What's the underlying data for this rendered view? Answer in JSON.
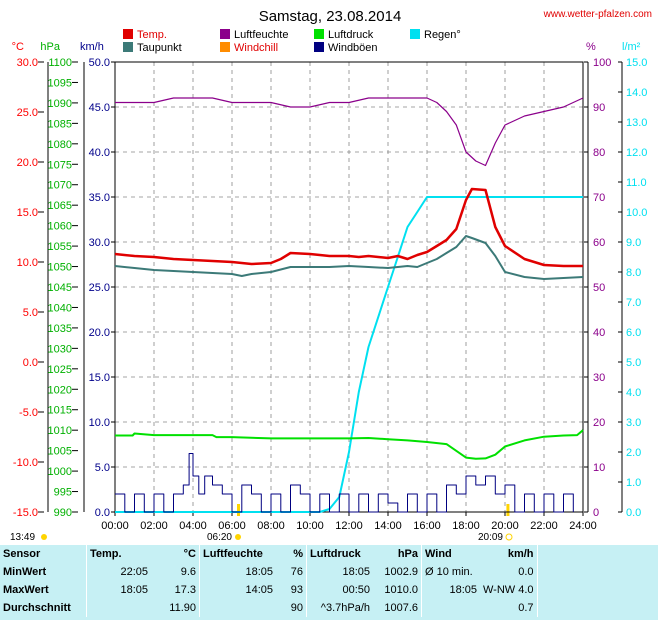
{
  "header": {
    "title": "Samstag, 23.08.2014",
    "site": "www.wetter-pfalzen.com"
  },
  "colors": {
    "temp": "#e00000",
    "dew": "#3c7a78",
    "humidity": "#8b008b",
    "windchill": "#ff8c00",
    "pressure": "#00e000",
    "windgust": "#000080",
    "rain": "#00e0f0",
    "left_km": "#00008b",
    "left_temp": "#ff0000",
    "left_hpa": "#00b000",
    "stats_bg": "#c6f0f4"
  },
  "chart_data": {
    "type": "line",
    "legend": [
      {
        "name": "Temp.",
        "key": "temp"
      },
      {
        "name": "Taupunkt",
        "key": "dew"
      },
      {
        "name": "Luftfeuchte",
        "key": "humidity"
      },
      {
        "name": "Windchill",
        "key": "windchill"
      },
      {
        "name": "Luftdruck",
        "key": "pressure"
      },
      {
        "name": "Windböen",
        "key": "windgust"
      },
      {
        "name": "Regen°",
        "key": "rain"
      }
    ],
    "axes": {
      "km_h": {
        "label": "km/h",
        "ticks": [
          "50.0",
          "45.0",
          "40.0",
          "35.0",
          "30.0",
          "25.0",
          "20.0",
          "15.0",
          "10.0",
          "5.0",
          "0.0"
        ],
        "range": [
          0,
          50
        ]
      },
      "temp_c": {
        "label": "°C",
        "ticks": [
          "30.0",
          "25.0",
          "20.0",
          "15.0",
          "10.0",
          "5.0",
          "0.0",
          "-5.0",
          "-10.0",
          "-15.0"
        ],
        "range": [
          -15,
          30
        ]
      },
      "pressure_hpa": {
        "label": "hPa",
        "ticks": [
          "1100",
          "1095",
          "1090",
          "1085",
          "1080",
          "1075",
          "1070",
          "1065",
          "1060",
          "1055",
          "1050",
          "1045",
          "1040",
          "1035",
          "1030",
          "1025",
          "1020",
          "1015",
          "1010",
          "1005",
          "1000",
          "995",
          "990"
        ],
        "range": [
          990,
          1100
        ]
      },
      "humidity_pct": {
        "label": "%",
        "ticks": [
          "100",
          "90",
          "80",
          "70",
          "60",
          "50",
          "40",
          "30",
          "20",
          "10",
          "0"
        ],
        "range": [
          0,
          100
        ]
      },
      "rain_l_m2": {
        "label": "l/m²",
        "ticks": [
          "15.0",
          "14.0",
          "13.0",
          "12.0",
          "11.0",
          "10.0",
          "9.0",
          "8.0",
          "7.0",
          "6.0",
          "5.0",
          "4.0",
          "3.0",
          "2.0",
          "1.0",
          "0.0"
        ],
        "range": [
          0,
          15
        ]
      }
    },
    "x_ticks": [
      "00:00",
      "02:00",
      "04:00",
      "06:00",
      "08:00",
      "10:00",
      "12:00",
      "14:00",
      "16:00",
      "18:00",
      "20:00",
      "22:00",
      "24:00"
    ],
    "x_range": [
      0,
      24
    ],
    "grid": true,
    "sun_labels": {
      "sunrise": "06:20",
      "sunset": "20:09",
      "daylight": "13:49"
    },
    "series": [
      {
        "name": "Temp.",
        "key": "temp",
        "axis": "temp_c",
        "x": [
          0,
          1,
          2,
          3,
          4,
          5,
          6,
          6.5,
          7,
          8,
          8.5,
          9,
          10,
          10.5,
          11,
          12,
          12.5,
          13,
          14,
          14.5,
          15,
          15.5,
          16,
          16.5,
          17,
          17.5,
          18,
          18.3,
          19,
          19.5,
          20,
          21,
          22,
          23,
          24
        ],
        "y": [
          10.8,
          10.6,
          10.5,
          10.3,
          10.2,
          10.1,
          10.0,
          9.9,
          9.8,
          9.9,
          10.3,
          10.9,
          10.8,
          10.7,
          10.6,
          10.6,
          10.5,
          10.6,
          10.4,
          10.6,
          10.3,
          10.7,
          11.0,
          11.6,
          12.2,
          13.3,
          16.2,
          17.3,
          17.2,
          13.5,
          11.6,
          10.3,
          9.7,
          9.6,
          9.6
        ]
      },
      {
        "name": "Taupunkt",
        "key": "dew",
        "axis": "temp_c",
        "x": [
          0,
          1,
          2,
          3,
          4,
          5,
          6,
          6.5,
          7,
          8,
          9,
          10,
          11,
          12,
          13,
          14,
          15,
          15.5,
          16,
          16.5,
          17,
          17.5,
          18,
          18.3,
          19,
          19.5,
          20,
          21,
          22,
          23,
          24
        ],
        "y": [
          9.6,
          9.4,
          9.2,
          9.1,
          9.0,
          8.9,
          8.8,
          8.6,
          8.8,
          9.0,
          9.5,
          9.5,
          9.5,
          9.6,
          9.5,
          9.4,
          9.6,
          9.5,
          9.9,
          10.3,
          10.9,
          11.5,
          12.6,
          12.4,
          11.9,
          10.6,
          9.0,
          8.5,
          8.3,
          8.4,
          8.5
        ]
      },
      {
        "name": "Luftfeuchte",
        "key": "humidity",
        "axis": "humidity_pct",
        "x": [
          0,
          1,
          2,
          3,
          4,
          5,
          6,
          7,
          8,
          9,
          10,
          11,
          12,
          13,
          14,
          15,
          16,
          16.5,
          17,
          17.5,
          18,
          18.5,
          19,
          19.5,
          20,
          21,
          22,
          23,
          24
        ],
        "y": [
          91,
          91,
          91,
          92,
          92,
          92,
          91,
          91,
          91,
          90,
          90,
          91,
          91,
          92,
          92,
          92,
          92,
          91,
          89,
          86,
          80,
          78,
          77,
          82,
          86,
          88,
          89,
          90,
          92
        ]
      },
      {
        "name": "Luftdruck",
        "key": "pressure",
        "axis": "pressure_hpa",
        "x": [
          0,
          0.9,
          1,
          2,
          3,
          5,
          5.2,
          6,
          8,
          10,
          12,
          13,
          14,
          15,
          16,
          17,
          18,
          18.5,
          19,
          19.5,
          20,
          21,
          22,
          23,
          23.7,
          24
        ],
        "y": [
          1008.7,
          1008.7,
          1009.2,
          1008.8,
          1008.8,
          1008.8,
          1008.3,
          1008.3,
          1008.0,
          1008.0,
          1008.0,
          1008.1,
          1007.8,
          1007.5,
          1007.1,
          1006.6,
          1003.3,
          1003.0,
          1003.1,
          1004.0,
          1006.0,
          1007.5,
          1008.4,
          1008.7,
          1008.8,
          1010.0
        ]
      },
      {
        "name": "Regen°",
        "key": "rain",
        "axis": "rain_l_m2",
        "x": [
          0,
          10.5,
          11,
          11.5,
          12,
          12.5,
          13,
          14,
          14.5,
          15,
          15.5,
          16,
          17,
          18,
          20,
          24
        ],
        "y": [
          0,
          0,
          0.1,
          0.5,
          2.0,
          4.0,
          5.5,
          7.5,
          8.5,
          9.5,
          10.0,
          10.5,
          10.5,
          10.5,
          10.5,
          10.5
        ]
      },
      {
        "name": "Windböen",
        "key": "windgust",
        "axis": "km_h",
        "x": [
          0,
          0.5,
          1,
          1.5,
          2,
          2.5,
          3,
          3.5,
          3.8,
          4,
          4.3,
          4.6,
          5,
          5.5,
          6,
          6.5,
          7,
          7.5,
          8,
          8.5,
          9,
          9.5,
          10,
          10.5,
          11,
          11.5,
          12,
          12.5,
          13,
          13.5,
          14,
          14.5,
          15,
          15.5,
          16,
          16.5,
          17,
          17.5,
          18,
          18.5,
          19,
          19.5,
          20,
          20.5,
          21,
          21.5,
          22,
          22.5,
          23,
          23.5
        ],
        "y": [
          2,
          0,
          2,
          0,
          2,
          0,
          2,
          3,
          6.5,
          4,
          2,
          4,
          3,
          2,
          0,
          3,
          2,
          0,
          2,
          0,
          3,
          2,
          0,
          2,
          0,
          2,
          0,
          2,
          0,
          2,
          1,
          0,
          2,
          0,
          2,
          0,
          3,
          2,
          4,
          3,
          4,
          2,
          3,
          0,
          2,
          0,
          2,
          0,
          2,
          0
        ]
      }
    ]
  },
  "stats": {
    "headers": {
      "sensor": "Sensor",
      "temp": "Temp.",
      "temp_unit": "°C",
      "hum": "Luftfeuchte",
      "hum_unit": "%",
      "press": "Luftdruck",
      "press_unit": "hPa",
      "wind": "Wind",
      "wind_unit": "km/h"
    },
    "rows": [
      {
        "label": "MinWert",
        "t_time": "22:05",
        "t_val": "9.6",
        "h_time": "18:05",
        "h_val": "76",
        "p_time": "18:05",
        "p_val": "1002.9",
        "w_time": "Ø 10 min.",
        "w_val": "0.0"
      },
      {
        "label": "MaxWert",
        "t_time": "18:05",
        "t_val": "17.3",
        "h_time": "14:05",
        "h_val": "93",
        "p_time": "00:50",
        "p_val": "1010.0",
        "w_time": "18:05",
        "w_val": "W-NW 4.0"
      },
      {
        "label": "Durchschnitt",
        "t_time": "",
        "t_val": "11.90",
        "h_time": "",
        "h_val": "90",
        "p_time": "^3.7hPa/h",
        "p_val": "1007.6",
        "w_time": "",
        "w_val": "0.7"
      }
    ]
  }
}
